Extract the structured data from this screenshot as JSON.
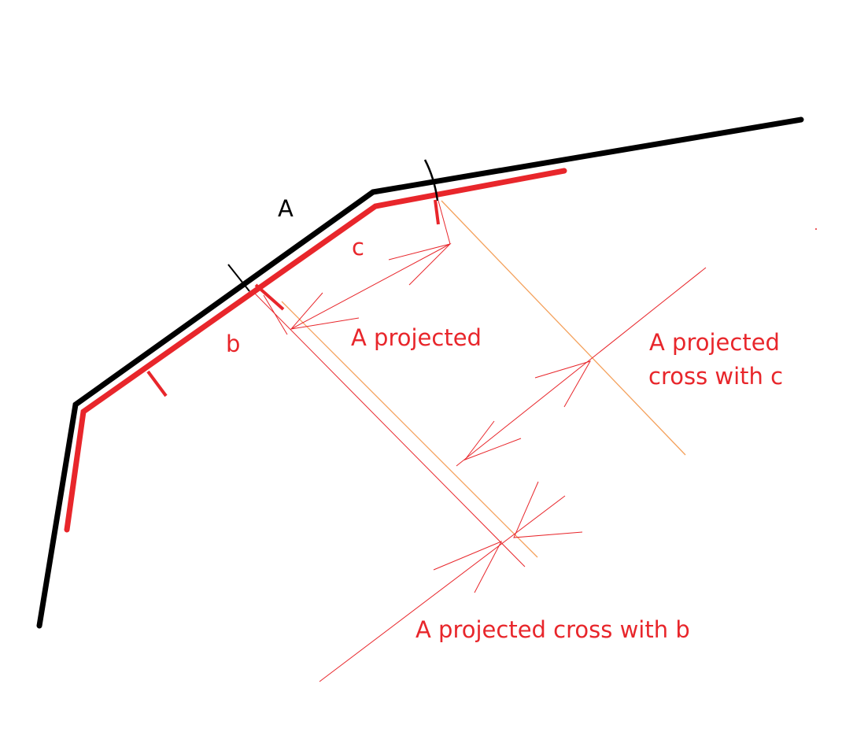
{
  "labels": {
    "A": "A",
    "b": "b",
    "c": "c",
    "a_projected": "A projected",
    "cross_c_line1": "A projected",
    "cross_c_line2": "cross with c",
    "cross_b": "A projected cross with b"
  },
  "colors": {
    "original_polyline": "#000000",
    "offset_polyline": "#e8262b",
    "annotation_red": "#e8262b",
    "projection_orange": "#f4a15c",
    "background": "#ffffff"
  }
}
